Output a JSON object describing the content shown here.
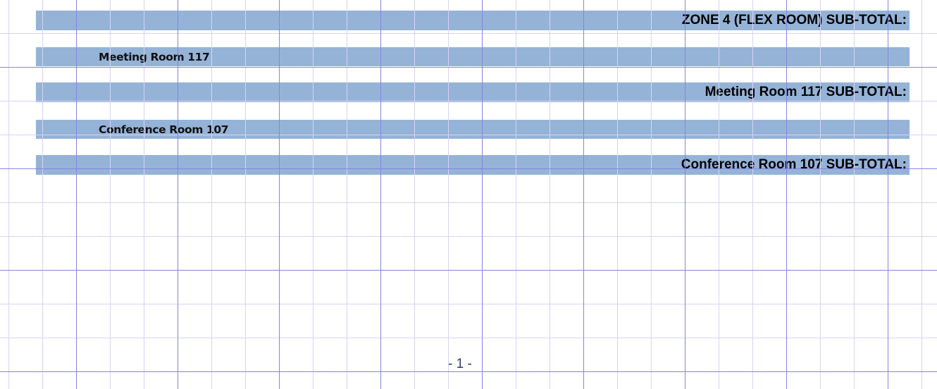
{
  "report": {
    "rows": [
      {
        "type": "subtotal",
        "text": "ZONE 4 (FLEX ROOM) SUB-TOTAL:"
      },
      {
        "type": "group-header",
        "text": "Meeting Room 117"
      },
      {
        "type": "subtotal",
        "text": "Meeting Room 117 SUB-TOTAL:"
      },
      {
        "type": "group-header",
        "text": "Conference Room 107"
      },
      {
        "type": "subtotal",
        "text": "Conference Room 107 SUB-TOTAL:"
      }
    ],
    "page_number": "- 1 -"
  },
  "colors": {
    "band": "#95b3d7",
    "grid_major": "#8585e0",
    "grid_minor": "#d6d3f5"
  }
}
